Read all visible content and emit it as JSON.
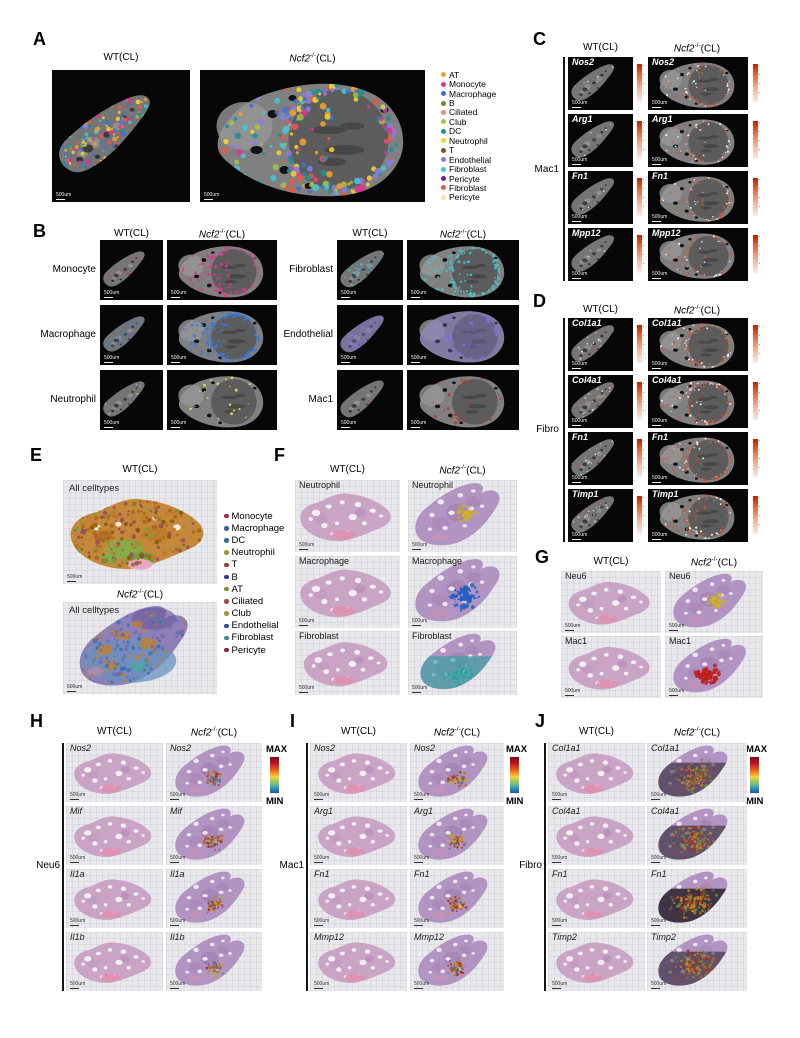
{
  "shared": {
    "wt_label": "WT(CL)",
    "ko_gene": "Ncf2",
    "ko_sup": "-/-",
    "ko_suffix": "(CL)",
    "scalebar_label": "500um",
    "max_label": "MAX",
    "min_label": "MIN",
    "heat_colors": {
      "red_low": "#f8ece8",
      "red_high": "#bc2000",
      "jet_top": "#7c0a12",
      "jet_bottom": "#1455aa"
    }
  },
  "panels": {
    "A": {
      "letter": "A",
      "legend": [
        {
          "label": "AT",
          "color": "#f0a22e"
        },
        {
          "label": "Monocyte",
          "color": "#e6318e"
        },
        {
          "label": "Macrophage",
          "color": "#3c72d2"
        },
        {
          "label": "B",
          "color": "#8a7c26"
        },
        {
          "label": "Ciliated",
          "color": "#ef8b79"
        },
        {
          "label": "Club",
          "color": "#a6c243"
        },
        {
          "label": "DC",
          "color": "#1f9191"
        },
        {
          "label": "Neutrophil",
          "color": "#f5d32a"
        },
        {
          "label": "T",
          "color": "#8a4b25"
        },
        {
          "label": "Endothelial",
          "color": "#8a7ce0"
        },
        {
          "label": "Fibroblast",
          "color": "#46c5d5"
        },
        {
          "label": "Pericyte",
          "color": "#73218a"
        },
        {
          "label": "Fibroblast",
          "color": "#e55a49"
        },
        {
          "label": "Pericyte",
          "color": "#f3e3a9"
        }
      ]
    },
    "B": {
      "letter": "B",
      "groups": [
        {
          "rows": [
            {
              "label": "Monocyte",
              "color": "#e0368e"
            },
            {
              "label": "Macrophage",
              "color": "#3a78d8"
            },
            {
              "label": "Neutrophil",
              "color": "#e8e03a"
            }
          ]
        },
        {
          "rows": [
            {
              "label": "Fibroblast",
              "color": "#3cc8d8"
            },
            {
              "label": "Endothelial",
              "color": "#8072d8"
            },
            {
              "label": "Mac1",
              "color": "#c03028"
            }
          ]
        }
      ]
    },
    "C": {
      "letter": "C",
      "group": "Mac1",
      "overlay": "#d94f2b",
      "rows": [
        {
          "gene": "Nos2"
        },
        {
          "gene": "Arg1"
        },
        {
          "gene": "Fn1"
        },
        {
          "gene": "Mpp12"
        }
      ]
    },
    "D": {
      "letter": "D",
      "group": "Fibro",
      "overlay": "#d94f2b",
      "rows": [
        {
          "gene": "Col1a1"
        },
        {
          "gene": "Col4a1"
        },
        {
          "gene": "Fn1"
        },
        {
          "gene": "Timp1"
        }
      ]
    },
    "E": {
      "letter": "E",
      "inner_label": "All celltypes",
      "legend": [
        {
          "label": "Monocyte",
          "color": "#993344"
        },
        {
          "label": "Macrophage",
          "color": "#3a5f9a"
        },
        {
          "label": "DC",
          "color": "#2f6f8f"
        },
        {
          "label": "Neutrophil",
          "color": "#a3992e"
        },
        {
          "label": "T",
          "color": "#8a3a3a"
        },
        {
          "label": "B",
          "color": "#333a8a"
        },
        {
          "label": "AT",
          "color": "#8f8a2f"
        },
        {
          "label": "Ciliated",
          "color": "#a04848"
        },
        {
          "label": "Club",
          "color": "#9a9a3a"
        },
        {
          "label": "Endothelial",
          "color": "#3a4a9a"
        },
        {
          "label": "Fibroblast",
          "color": "#2f8f8a"
        },
        {
          "label": "Pericyte",
          "color": "#7a2f3f"
        }
      ]
    },
    "F": {
      "letter": "F",
      "rows": [
        {
          "label": "Neutrophil",
          "color": "#d4b414"
        },
        {
          "label": "Macrophage",
          "color": "#2360c4"
        },
        {
          "label": "Fibroblast",
          "color": "#28a49c"
        }
      ]
    },
    "G": {
      "letter": "G",
      "rows": [
        {
          "label": "Neu6",
          "color": "#d4b414"
        },
        {
          "label": "Mac1",
          "color": "#bb1f1f"
        }
      ]
    },
    "H": {
      "letter": "H",
      "group": "Neu6",
      "rows": [
        {
          "gene": "Nos2"
        },
        {
          "gene": "Mif"
        },
        {
          "gene": "Il1a"
        },
        {
          "gene": "Il1b"
        }
      ]
    },
    "I": {
      "letter": "I",
      "group": "Mac1",
      "rows": [
        {
          "gene": "Nos2"
        },
        {
          "gene": "Arg1"
        },
        {
          "gene": "Fn1"
        },
        {
          "gene": "Mmp12"
        }
      ]
    },
    "J": {
      "letter": "J",
      "group": "Fibro",
      "overlay": "#c88020",
      "rows": [
        {
          "gene": "Col1a1"
        },
        {
          "gene": "Col4a1"
        },
        {
          "gene": "Fn1"
        },
        {
          "gene": "Timp2"
        }
      ]
    }
  }
}
